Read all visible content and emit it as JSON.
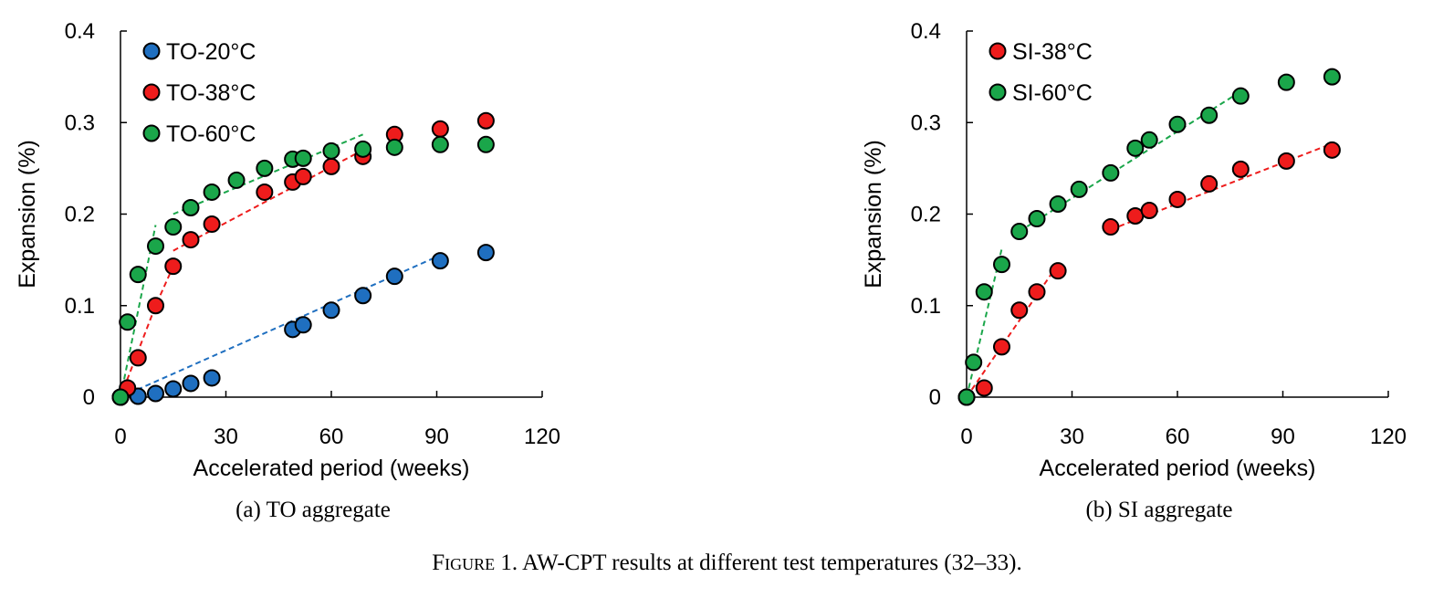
{
  "figure_caption": {
    "label": "Figure 1.",
    "text": "AW-CPT results at different test temperatures (32–33)."
  },
  "colors": {
    "blue": "#1f6fc0",
    "red": "#ee1c1c",
    "green": "#1aa64a",
    "marker_edge": "#000000"
  },
  "chart_data": [
    {
      "type": "scatter",
      "caption": "(a) TO aggregate",
      "xlabel": "Accelerated period (weeks)",
      "ylabel": "Expansion (%)",
      "xlim": [
        0,
        120
      ],
      "ylim": [
        0,
        0.4
      ],
      "xticks": [
        "0",
        "30",
        "60",
        "90",
        "120"
      ],
      "yticks": [
        "0",
        "0.1",
        "0.2",
        "0.3",
        "0.4"
      ],
      "legend_position": "top-left",
      "series": [
        {
          "name": "TO-20°C",
          "color": "blue",
          "x": [
            0,
            5,
            10,
            15,
            20,
            26,
            49,
            52,
            60,
            69,
            78,
            91,
            104
          ],
          "y": [
            0,
            0.001,
            0.004,
            0.009,
            0.015,
            0.021,
            0.074,
            0.079,
            0.095,
            0.111,
            0.132,
            0.149,
            0.158
          ],
          "trendlines": [
            [
              [
                0,
                0
              ],
              [
                91,
                0.155
              ]
            ]
          ]
        },
        {
          "name": "TO-38°C",
          "color": "red",
          "x": [
            0,
            2,
            5,
            10,
            15,
            20,
            26,
            41,
            49,
            52,
            60,
            69,
            78,
            91,
            104
          ],
          "y": [
            0,
            0.01,
            0.043,
            0.1,
            0.143,
            0.172,
            0.189,
            0.224,
            0.235,
            0.241,
            0.252,
            0.263,
            0.287,
            0.293,
            0.302
          ],
          "trendlines": [
            [
              [
                0,
                0
              ],
              [
                10,
                0.1
              ],
              [
                15,
                0.143
              ]
            ],
            [
              [
                15,
                0.16
              ],
              [
                69,
                0.27
              ]
            ]
          ]
        },
        {
          "name": "TO-60°C",
          "color": "green",
          "x": [
            0,
            2,
            5,
            10,
            15,
            20,
            26,
            33,
            41,
            49,
            52,
            60,
            69,
            78,
            91,
            104
          ],
          "y": [
            0,
            0.082,
            0.134,
            0.165,
            0.186,
            0.207,
            0.224,
            0.237,
            0.25,
            0.26,
            0.261,
            0.269,
            0.271,
            0.273,
            0.276,
            0.276
          ],
          "trendlines": [
            [
              [
                0,
                0
              ],
              [
                10,
                0.188
              ]
            ],
            [
              [
                15,
                0.2
              ],
              [
                69,
                0.287
              ]
            ]
          ]
        }
      ]
    },
    {
      "type": "scatter",
      "caption": "(b) SI aggregate",
      "xlabel": "Accelerated period (weeks)",
      "ylabel": "Expansion (%)",
      "xlim": [
        0,
        120
      ],
      "ylim": [
        0,
        0.4
      ],
      "xticks": [
        "0",
        "30",
        "60",
        "90",
        "120"
      ],
      "yticks": [
        "0",
        "0.1",
        "0.2",
        "0.3",
        "0.4"
      ],
      "legend_position": "top-left",
      "series": [
        {
          "name": "SI-38°C",
          "color": "red",
          "x": [
            0,
            5,
            10,
            15,
            20,
            26,
            41,
            48,
            52,
            60,
            69,
            78,
            91,
            104
          ],
          "y": [
            0,
            0.01,
            0.055,
            0.095,
            0.115,
            0.138,
            0.186,
            0.198,
            0.204,
            0.216,
            0.233,
            0.249,
            0.258,
            0.27
          ],
          "trendlines": [
            [
              [
                0,
                0
              ],
              [
                26,
                0.145
              ]
            ],
            [
              [
                41,
                0.183
              ],
              [
                104,
                0.277
              ]
            ]
          ]
        },
        {
          "name": "SI-60°C",
          "color": "green",
          "x": [
            0,
            2,
            5,
            10,
            15,
            20,
            26,
            32,
            41,
            48,
            52,
            60,
            69,
            78,
            91,
            104
          ],
          "y": [
            0,
            0.038,
            0.115,
            0.145,
            0.181,
            0.195,
            0.211,
            0.227,
            0.245,
            0.272,
            0.281,
            0.298,
            0.308,
            0.329,
            0.344,
            0.35
          ],
          "trendlines": [
            [
              [
                0,
                0
              ],
              [
                10,
                0.162
              ]
            ],
            [
              [
                15,
                0.181
              ],
              [
                78,
                0.334
              ]
            ]
          ]
        }
      ]
    }
  ]
}
